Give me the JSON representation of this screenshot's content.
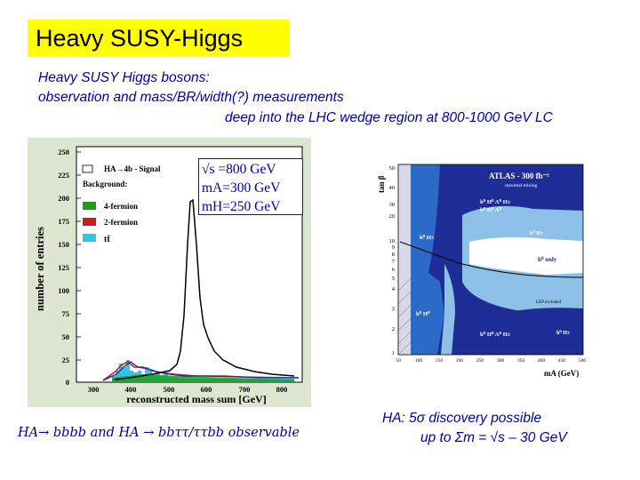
{
  "slide": {
    "title": "Heavy SUSY-Higgs",
    "subtitle_line1": "Heavy SUSY Higgs bosons:",
    "subtitle_line2": "observation and mass/BR/width(?) measurements",
    "subtitle_line3": "deep into the LHC wedge region at 800-1000 GeV LC",
    "caption_left": "HA→ bbbb and HA → bbττ/ττbb observable",
    "caption_right_line1": "HA:  5σ discovery possible",
    "caption_right_line2": "up to Σm = √s – 30 GeV"
  },
  "left_plot": {
    "ylabel": "number of entries",
    "xlabel": "reconstructed mass sum [GeV]",
    "y_ticks": [
      "250",
      "225",
      "200",
      "175",
      "150",
      "125",
      "100",
      "75",
      "50",
      "25",
      "0"
    ],
    "x_ticks": [
      "300",
      "400",
      "500",
      "600",
      "700",
      "800"
    ],
    "legend": {
      "signal": "HA→4b - Signal",
      "background": "Background:",
      "fermion4": "4-fermion",
      "fermion2": "2-fermion",
      "ttbar": "tt̄"
    },
    "formula": {
      "line1": "√s =800 GeV",
      "line2": "mA=300 GeV",
      "line3": "mH=250 GeV"
    },
    "colors": {
      "bg": "#dde6d0",
      "signal_line": "#000000",
      "bkg_red": "#c81e1e",
      "bkg_green": "#18a018",
      "bkg_cyan": "#2ec8e6"
    }
  },
  "right_plot": {
    "ylabel": "tan β",
    "xlabel": "mA (GeV)",
    "title": "ATLAS - 300 fb⁻¹",
    "subtitle": "maximal mixing",
    "y_ticks": [
      "50",
      "40",
      "30",
      "20",
      "10",
      "9",
      "8",
      "7",
      "6",
      "5",
      "4",
      "3",
      "2",
      "1"
    ],
    "x_ticks": [
      "50",
      "100",
      "150",
      "200",
      "250",
      "300",
      "350",
      "400",
      "450",
      "500"
    ],
    "region_labels": [
      "h⁰ H⁰ A⁰ H±",
      "h⁰ H⁰ A⁰",
      "h⁰ H±",
      "h⁰ only",
      "h⁰ H±",
      "h⁰ H⁰",
      "h⁰ H⁰ A⁰ H±",
      "h⁰ H±"
    ],
    "lep_label": "LEP excluded",
    "colors": {
      "dark_blue": "#1f2e96",
      "mid_blue": "#2c6ac8",
      "light_blue": "#8cc0e6",
      "white": "#ffffff"
    }
  }
}
